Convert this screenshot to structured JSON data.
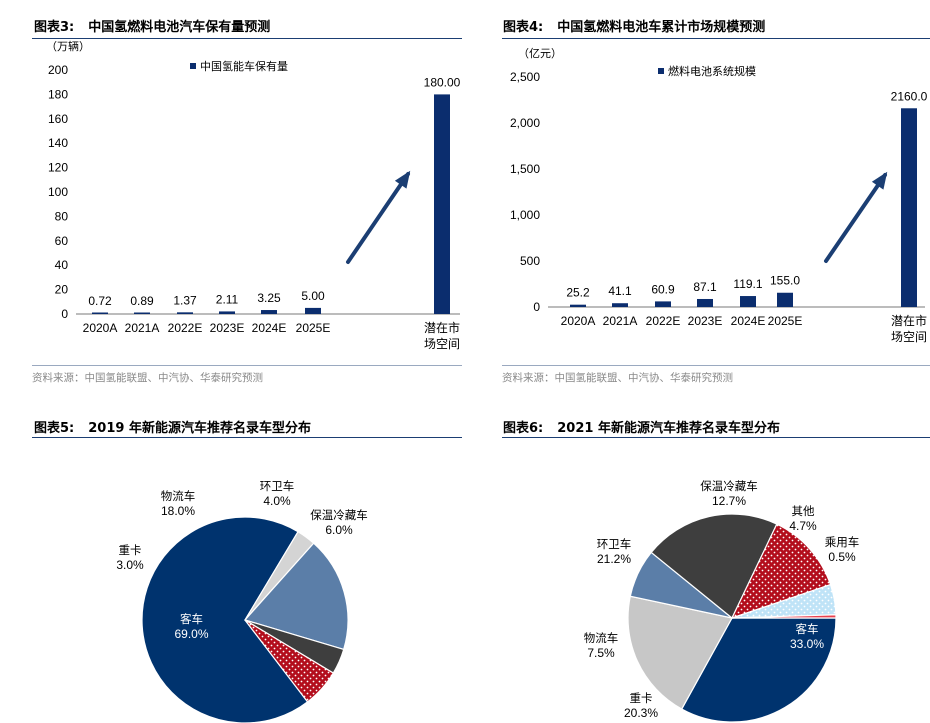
{
  "panels": [
    {
      "title_no": "图表3:",
      "title": "中国氢燃料电池汽车保有量预测",
      "source": "资料来源：中国氢能联盟、中汽协、华泰研究预测",
      "chart_data": {
        "type": "bar",
        "unit": "（万辆）",
        "legend": "中国氢能车保有量",
        "categories": [
          "2020A",
          "2021A",
          "2022E",
          "2023E",
          "2024E",
          "2025E",
          "潜在市场空间"
        ],
        "category_lines": [
          [
            "2020A"
          ],
          [
            "2021A"
          ],
          [
            "2022E"
          ],
          [
            "2023E"
          ],
          [
            "2024E"
          ],
          [
            "2025E"
          ],
          [
            "潜在市",
            "场空间"
          ]
        ],
        "values": [
          0.72,
          0.89,
          1.37,
          2.11,
          3.25,
          5.0,
          180.0
        ],
        "value_labels": [
          "0.72",
          "0.89",
          "1.37",
          "2.11",
          "3.25",
          "5.00",
          "180.00"
        ],
        "yticks": [
          "0",
          "20",
          "40",
          "60",
          "80",
          "100",
          "120",
          "140",
          "160",
          "180",
          "200"
        ],
        "ylim": [
          0,
          200
        ],
        "color": "#0b2d6e"
      }
    },
    {
      "title_no": "图表4:",
      "title": "中国氢燃料电池车累计市场规模预测",
      "source": "资料来源：中国氢能联盟、中汽协、华泰研究预测",
      "chart_data": {
        "type": "bar",
        "unit": "（亿元）",
        "legend": "燃料电池系统规模",
        "categories": [
          "2020A",
          "2021A",
          "2022E",
          "2023E",
          "2024E",
          "2025E",
          "潜在市场空间"
        ],
        "category_lines": [
          [
            "2020A"
          ],
          [
            "2021A"
          ],
          [
            "2022E"
          ],
          [
            "2023E"
          ],
          [
            "2024E"
          ],
          [
            "2025E"
          ],
          [
            "潜在市",
            "场空间"
          ]
        ],
        "values": [
          25.2,
          41.1,
          60.9,
          87.1,
          119.1,
          155.0,
          2160.0
        ],
        "value_labels": [
          "25.2",
          "41.1",
          "60.9",
          "87.1",
          "119.1",
          "155.0",
          "2160.0"
        ],
        "yticks": [
          "0",
          "500",
          "1,000",
          "1,500",
          "2,000",
          "2,500"
        ],
        "ylim": [
          0,
          2500
        ],
        "color": "#0b2d6e"
      }
    },
    {
      "title_no": "图表5:",
      "title": "2019 年新能源汽车推荐名录车型分布",
      "chart_data": {
        "type": "pie",
        "slices": [
          {
            "name": "客车",
            "value": 69.0,
            "label": "69.0%",
            "color": "#00336e",
            "pattern": "solid"
          },
          {
            "name": "重卡",
            "value": 3.0,
            "label": "3.0%",
            "color": "#d4d4d4",
            "pattern": "solid"
          },
          {
            "name": "物流车",
            "value": 18.0,
            "label": "18.0%",
            "color": "#5b7ea8",
            "pattern": "solid"
          },
          {
            "name": "环卫车",
            "value": 4.0,
            "label": "4.0%",
            "color": "#3e3e3e",
            "pattern": "solid"
          },
          {
            "name": "保温冷藏车",
            "value": 6.0,
            "label": "6.0%",
            "color": "#b30d1c",
            "pattern": "dots"
          }
        ]
      }
    },
    {
      "title_no": "图表6:",
      "title": "2021 年新能源汽车推荐名录车型分布",
      "chart_data": {
        "type": "pie",
        "slices": [
          {
            "name": "客车",
            "value": 33.0,
            "label": "33.0%",
            "color": "#00336e",
            "pattern": "solid"
          },
          {
            "name": "重卡",
            "value": 20.3,
            "label": "20.3%",
            "color": "#c7c7c7",
            "pattern": "solid"
          },
          {
            "name": "物流车",
            "value": 7.5,
            "label": "7.5%",
            "color": "#5b7ea8",
            "pattern": "solid"
          },
          {
            "name": "环卫车",
            "value": 21.2,
            "label": "21.2%",
            "color": "#3e3e3e",
            "pattern": "solid"
          },
          {
            "name": "保温冷藏车",
            "value": 12.7,
            "label": "12.7%",
            "color": "#b30d1c",
            "pattern": "dots"
          },
          {
            "name": "其他",
            "value": 4.7,
            "label": "4.7%",
            "color": "#bfe3f7",
            "pattern": "dots"
          },
          {
            "name": "乘用车",
            "value": 0.5,
            "label": "0.5%",
            "color": "#e8424f",
            "pattern": "solid"
          }
        ]
      }
    }
  ]
}
